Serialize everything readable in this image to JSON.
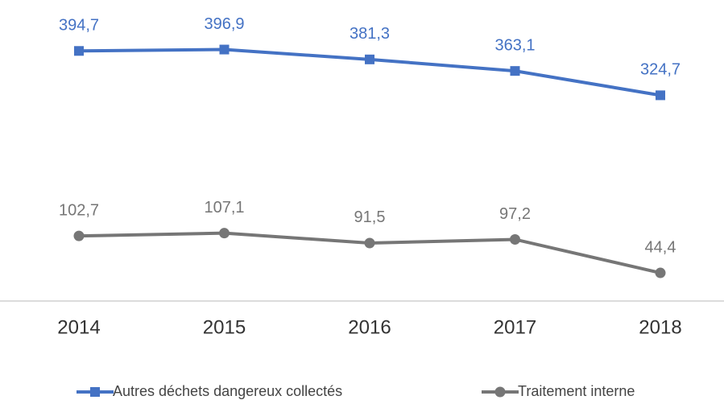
{
  "chart_data": {
    "type": "line",
    "categories": [
      "2014",
      "2015",
      "2016",
      "2017",
      "2018"
    ],
    "ylim": [
      0,
      470
    ],
    "series": [
      {
        "name": "Autres déchets dangereux collectés",
        "color": "#4472c4",
        "marker": "square",
        "values": [
          394.7,
          396.9,
          381.3,
          363.1,
          324.7
        ],
        "value_labels": [
          "394,7",
          "396,9",
          "381,3",
          "363,1",
          "324,7"
        ]
      },
      {
        "name": "Traitement interne",
        "color": "#767676",
        "marker": "circle",
        "values": [
          102.7,
          107.1,
          91.5,
          97.2,
          44.4
        ],
        "value_labels": [
          "102,7",
          "107,1",
          "91,5",
          "97,2",
          "44,4"
        ]
      }
    ]
  }
}
